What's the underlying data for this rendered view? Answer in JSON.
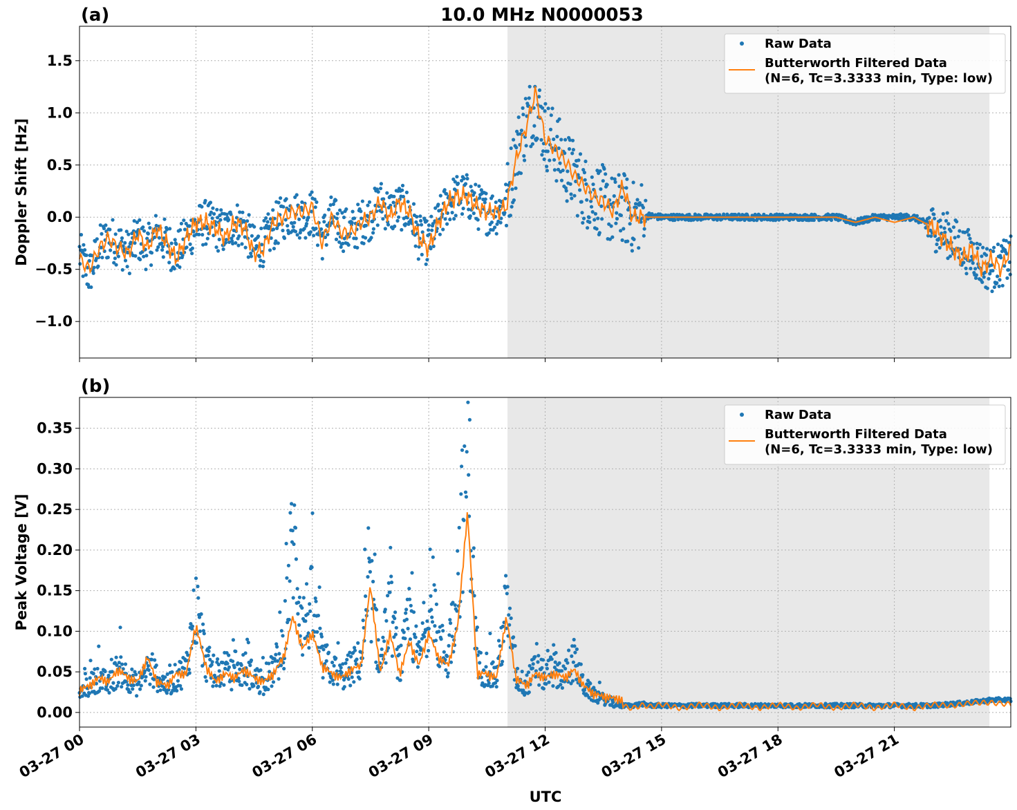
{
  "figure": {
    "title": "10.0 MHz N0000053",
    "xlabel": "UTC"
  },
  "colors": {
    "raw": "#1f77b4",
    "filtered": "#ff7f0e",
    "shade": "#e8e8e8",
    "grid": "#b0b0b0"
  },
  "legend": {
    "raw_label": "Raw Data",
    "filtered_label_line1": "Butterworth Filtered Data",
    "filtered_label_line2": "(N=6, Tc=3.3333 min, Type: low)"
  },
  "chart_data": [
    {
      "type": "scatter",
      "panel_label": "(a)",
      "title": "10.0 MHz N0000053",
      "xlabel": "",
      "ylabel": "Doppler Shift [Hz]",
      "xlim": [
        0,
        24
      ],
      "ylim": [
        -1.35,
        1.83
      ],
      "yticks": [
        -1.0,
        -0.5,
        0.0,
        0.5,
        1.0,
        1.5
      ],
      "ytick_labels": [
        "−1.0",
        "−0.5",
        "0.0",
        "0.5",
        "1.0",
        "1.5"
      ],
      "grid": true,
      "legend_position": "top-right",
      "shaded_region": [
        11.03,
        23.45
      ],
      "series": [
        {
          "name": "Raw Data",
          "style": "points",
          "x": [
            0,
            0.25,
            0.5,
            0.75,
            1,
            1.25,
            1.5,
            1.75,
            2,
            2.25,
            2.5,
            2.75,
            3,
            3.25,
            3.5,
            3.75,
            4,
            4.25,
            4.5,
            4.75,
            5,
            5.25,
            5.5,
            5.75,
            6,
            6.25,
            6.5,
            6.75,
            7,
            7.25,
            7.5,
            7.75,
            8,
            8.25,
            8.5,
            8.75,
            9,
            9.25,
            9.5,
            9.75,
            10,
            10.25,
            10.5,
            10.75,
            11,
            11.25,
            11.5,
            11.75,
            12,
            12.25,
            12.5,
            12.75,
            13,
            13.25,
            13.5,
            13.75,
            14,
            14.25,
            14.5,
            14.75,
            15,
            15.5,
            16,
            16.5,
            17,
            17.5,
            18,
            18.5,
            19,
            19.5,
            20,
            20.5,
            21,
            21.5,
            22,
            22.25,
            22.5,
            22.75,
            23,
            23.25,
            23.5,
            23.75,
            24
          ],
          "y": [
            -0.35,
            -0.55,
            -0.3,
            -0.2,
            -0.25,
            -0.35,
            -0.2,
            -0.3,
            -0.15,
            -0.25,
            -0.35,
            -0.2,
            -0.1,
            -0.05,
            -0.1,
            -0.15,
            -0.05,
            -0.1,
            -0.3,
            -0.25,
            -0.1,
            0.0,
            0.05,
            0.0,
            0.05,
            -0.2,
            0.0,
            -0.1,
            -0.15,
            -0.05,
            0.0,
            0.15,
            0.05,
            0.1,
            0.05,
            -0.2,
            -0.25,
            -0.05,
            0.15,
            0.2,
            0.2,
            0.1,
            0.05,
            0.05,
            0.15,
            0.6,
            0.9,
            1.1,
            0.8,
            0.7,
            0.5,
            0.4,
            0.25,
            0.2,
            0.15,
            0.05,
            0.1,
            0.0,
            0.02,
            0.01,
            0.0,
            0.0,
            0.0,
            0.0,
            0.0,
            0.0,
            0.0,
            0.0,
            0.0,
            0.0,
            -0.05,
            0.0,
            0.0,
            0.0,
            -0.1,
            -0.15,
            -0.2,
            -0.3,
            -0.35,
            -0.45,
            -0.5,
            -0.45,
            -0.4
          ]
        },
        {
          "name": "Butterworth Filtered Data (N=6, Tc=3.3333 min, Type: low)",
          "style": "line",
          "x": [
            0,
            0.25,
            0.5,
            0.75,
            1,
            1.25,
            1.5,
            1.75,
            2,
            2.25,
            2.5,
            2.75,
            3,
            3.25,
            3.5,
            3.75,
            4,
            4.25,
            4.5,
            4.75,
            5,
            5.25,
            5.5,
            5.75,
            6,
            6.25,
            6.5,
            6.75,
            7,
            7.25,
            7.5,
            7.75,
            8,
            8.25,
            8.5,
            8.75,
            9,
            9.25,
            9.5,
            9.75,
            10,
            10.25,
            10.5,
            10.75,
            11,
            11.25,
            11.5,
            11.75,
            12,
            12.25,
            12.5,
            12.75,
            13,
            13.25,
            13.5,
            13.75,
            14,
            14.25,
            14.5,
            14.75,
            15,
            15.5,
            16,
            16.5,
            17,
            17.5,
            18,
            18.5,
            19,
            19.5,
            20,
            20.5,
            21,
            21.5,
            22,
            22.25,
            22.5,
            22.75,
            23,
            23.25,
            23.5,
            23.75,
            24
          ],
          "y": [
            -0.4,
            -0.5,
            -0.3,
            -0.2,
            -0.3,
            -0.35,
            -0.15,
            -0.3,
            -0.1,
            -0.25,
            -0.4,
            -0.2,
            -0.05,
            -0.05,
            -0.1,
            -0.2,
            -0.05,
            -0.1,
            -0.35,
            -0.3,
            -0.05,
            0.0,
            0.05,
            0.05,
            0.1,
            -0.25,
            0.0,
            -0.15,
            -0.15,
            -0.05,
            0.0,
            0.15,
            0.0,
            0.15,
            0.05,
            -0.2,
            -0.3,
            -0.05,
            0.15,
            0.2,
            0.2,
            0.1,
            0.05,
            0.05,
            0.1,
            0.55,
            0.85,
            1.2,
            0.75,
            0.65,
            0.55,
            0.4,
            0.3,
            0.2,
            0.15,
            0.05,
            0.3,
            0.0,
            0.0,
            0.0,
            0.0,
            0.0,
            0.0,
            0.0,
            0.0,
            0.0,
            0.0,
            0.0,
            0.0,
            0.0,
            -0.05,
            0.0,
            -0.05,
            0.0,
            -0.1,
            -0.2,
            -0.3,
            -0.4,
            -0.3,
            -0.5,
            -0.4,
            -0.5,
            -0.3
          ]
        }
      ]
    },
    {
      "type": "scatter",
      "panel_label": "(b)",
      "title": "",
      "xlabel": "UTC",
      "ylabel": "Peak Voltage [V]",
      "xlim": [
        0,
        24
      ],
      "ylim": [
        -0.018,
        0.388
      ],
      "yticks": [
        0.0,
        0.05,
        0.1,
        0.15,
        0.2,
        0.25,
        0.3,
        0.35
      ],
      "ytick_labels": [
        "0.00",
        "0.05",
        "0.10",
        "0.15",
        "0.20",
        "0.25",
        "0.30",
        "0.35"
      ],
      "xticks": [
        0,
        3,
        6,
        9,
        12,
        15,
        18,
        21
      ],
      "xtick_labels": [
        "03-27 00",
        "03-27 03",
        "03-27 06",
        "03-27 09",
        "03-27 12",
        "03-27 15",
        "03-27 18",
        "03-27 21"
      ],
      "grid": true,
      "legend_position": "top-right",
      "shaded_region": [
        11.03,
        23.45
      ],
      "series": [
        {
          "name": "Raw Data",
          "style": "points",
          "x": [
            0,
            0.25,
            0.5,
            0.75,
            1,
            1.25,
            1.5,
            1.75,
            2,
            2.25,
            2.5,
            2.75,
            3,
            3.25,
            3.5,
            3.75,
            4,
            4.25,
            4.5,
            4.75,
            5,
            5.25,
            5.5,
            5.75,
            6,
            6.25,
            6.5,
            6.75,
            7,
            7.25,
            7.5,
            7.75,
            8,
            8.25,
            8.5,
            8.75,
            9,
            9.25,
            9.5,
            9.75,
            10,
            10.25,
            10.5,
            10.75,
            11,
            11.25,
            11.5,
            11.75,
            12,
            12.25,
            12.5,
            12.75,
            13,
            13.25,
            13.5,
            13.75,
            14,
            14.25,
            14.5,
            14.75,
            15,
            15.5,
            16,
            16.5,
            17,
            17.5,
            18,
            18.5,
            19,
            19.5,
            20,
            20.5,
            21,
            21.5,
            22,
            22.5,
            23,
            23.5,
            24
          ],
          "y": [
            0.02,
            0.03,
            0.04,
            0.03,
            0.05,
            0.04,
            0.03,
            0.05,
            0.04,
            0.03,
            0.04,
            0.05,
            0.12,
            0.06,
            0.04,
            0.05,
            0.04,
            0.05,
            0.04,
            0.03,
            0.05,
            0.07,
            0.2,
            0.1,
            0.12,
            0.06,
            0.05,
            0.04,
            0.05,
            0.06,
            0.14,
            0.05,
            0.12,
            0.05,
            0.1,
            0.06,
            0.12,
            0.08,
            0.06,
            0.15,
            0.3,
            0.05,
            0.05,
            0.04,
            0.12,
            0.04,
            0.03,
            0.05,
            0.04,
            0.05,
            0.04,
            0.06,
            0.03,
            0.02,
            0.015,
            0.01,
            0.008,
            0.008,
            0.01,
            0.008,
            0.008,
            0.008,
            0.008,
            0.008,
            0.008,
            0.008,
            0.008,
            0.008,
            0.008,
            0.008,
            0.008,
            0.008,
            0.008,
            0.008,
            0.008,
            0.01,
            0.012,
            0.015,
            0.015
          ]
        },
        {
          "name": "Butterworth Filtered Data (N=6, Tc=3.3333 min, Type: low)",
          "style": "line",
          "x": [
            0,
            0.25,
            0.5,
            0.75,
            1,
            1.25,
            1.5,
            1.75,
            2,
            2.25,
            2.5,
            2.75,
            3,
            3.25,
            3.5,
            3.75,
            4,
            4.25,
            4.5,
            4.75,
            5,
            5.25,
            5.5,
            5.75,
            6,
            6.25,
            6.5,
            6.75,
            7,
            7.25,
            7.5,
            7.75,
            8,
            8.25,
            8.5,
            8.75,
            9,
            9.25,
            9.5,
            9.75,
            10,
            10.25,
            10.5,
            10.75,
            11,
            11.25,
            11.5,
            11.75,
            12,
            12.25,
            12.5,
            12.75,
            13,
            13.25,
            13.5,
            13.75,
            14,
            14.25,
            14.5,
            14.75,
            15,
            15.5,
            16,
            16.5,
            17,
            17.5,
            18,
            18.5,
            19,
            19.5,
            20,
            20.5,
            21,
            21.5,
            22,
            22.5,
            23,
            23.5,
            24
          ],
          "y": [
            0.02,
            0.025,
            0.035,
            0.03,
            0.045,
            0.035,
            0.03,
            0.06,
            0.03,
            0.025,
            0.04,
            0.04,
            0.1,
            0.05,
            0.03,
            0.04,
            0.035,
            0.045,
            0.035,
            0.03,
            0.04,
            0.06,
            0.11,
            0.07,
            0.09,
            0.05,
            0.04,
            0.035,
            0.045,
            0.05,
            0.15,
            0.04,
            0.09,
            0.04,
            0.08,
            0.05,
            0.09,
            0.06,
            0.05,
            0.1,
            0.24,
            0.04,
            0.04,
            0.035,
            0.11,
            0.035,
            0.025,
            0.04,
            0.035,
            0.04,
            0.035,
            0.045,
            0.025,
            0.015,
            0.012,
            0.01,
            0.008,
            0.005,
            0.009,
            0.007,
            0.01,
            0.005,
            0.01,
            0.005,
            0.01,
            0.005,
            0.01,
            0.005,
            0.01,
            0.005,
            0.01,
            0.005,
            0.01,
            0.005,
            0.01,
            0.008,
            0.012,
            0.012,
            0.01
          ]
        }
      ]
    }
  ]
}
